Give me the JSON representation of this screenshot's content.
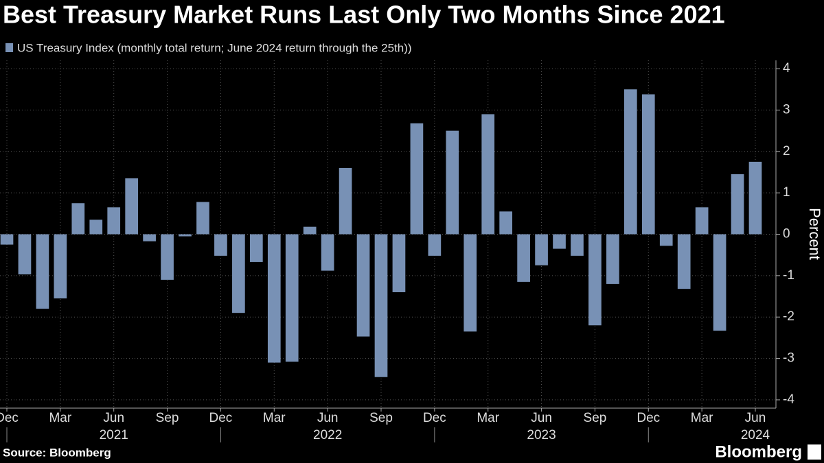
{
  "chart_data": {
    "type": "bar",
    "title": "Best Treasury Market Runs Last Only Two Months Since 2021",
    "series": [
      {
        "name": "US Treasury Index (monthly total return; June 2024 return through the 25th))",
        "color": "#7891b5",
        "values": [
          -0.25,
          -0.97,
          -1.8,
          -1.55,
          0.75,
          0.35,
          0.65,
          1.35,
          -0.17,
          -1.1,
          -0.05,
          0.78,
          -0.52,
          -1.9,
          -0.67,
          -3.1,
          -3.08,
          0.18,
          -0.88,
          1.6,
          -2.47,
          -3.45,
          -1.4,
          2.68,
          -0.52,
          2.5,
          -2.35,
          2.9,
          0.55,
          -1.15,
          -0.75,
          -0.35,
          -0.52,
          -2.2,
          -1.2,
          3.5,
          3.38,
          -0.28,
          -1.32,
          0.65,
          -2.33,
          1.45,
          1.75
        ]
      }
    ],
    "categories": [
      "Dec",
      null,
      null,
      "Mar",
      null,
      null,
      "Jun",
      null,
      null,
      "Sep",
      null,
      null,
      "Dec",
      null,
      null,
      "Mar",
      null,
      null,
      "Jun",
      null,
      null,
      "Sep",
      null,
      null,
      "Dec",
      null,
      null,
      "Mar",
      null,
      null,
      "Jun",
      null,
      null,
      "Sep",
      null,
      null,
      "Dec",
      null,
      null,
      "Mar",
      null,
      null,
      "Jun"
    ],
    "years": [
      "2021",
      "2022",
      "2023",
      "2024"
    ],
    "y_label": "Percent",
    "ylim": [
      -4.2,
      4.2
    ],
    "yticks": [
      -4,
      -3,
      -2,
      -1,
      0,
      1,
      2,
      3,
      4
    ],
    "grid": true,
    "source": "Source: Bloomberg",
    "brand": "Bloomberg"
  }
}
